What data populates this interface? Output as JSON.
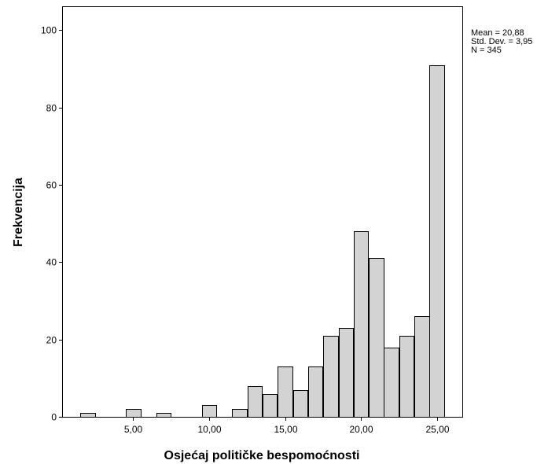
{
  "chart_data": {
    "type": "bar",
    "xlabel": "Osjećaj političke bespomoćnosti",
    "ylabel": "Frekvencija",
    "bar_color": "#d3d3d3",
    "edge_color": "#000000",
    "bin_width": 0.96,
    "bins": [
      {
        "center": 2.0,
        "count": 1
      },
      {
        "center": 5.0,
        "count": 2
      },
      {
        "center": 7.0,
        "count": 1
      },
      {
        "center": 10.0,
        "count": 3
      },
      {
        "center": 12.0,
        "count": 2
      },
      {
        "center": 13.0,
        "count": 8
      },
      {
        "center": 14.0,
        "count": 6
      },
      {
        "center": 15.0,
        "count": 13
      },
      {
        "center": 16.0,
        "count": 7
      },
      {
        "center": 17.0,
        "count": 13
      },
      {
        "center": 18.0,
        "count": 21
      },
      {
        "center": 19.0,
        "count": 23
      },
      {
        "center": 20.0,
        "count": 48
      },
      {
        "center": 21.0,
        "count": 41
      },
      {
        "center": 22.0,
        "count": 18
      },
      {
        "center": 23.0,
        "count": 21
      },
      {
        "center": 24.0,
        "count": 26
      },
      {
        "center": 25.0,
        "count": 91
      }
    ],
    "x_ticks": [
      {
        "value": 5,
        "label": "5,00"
      },
      {
        "value": 10,
        "label": "10,00"
      },
      {
        "value": 15,
        "label": "15,00"
      },
      {
        "value": 20,
        "label": "20,00"
      },
      {
        "value": 25,
        "label": "25,00"
      }
    ],
    "y_ticks": [
      {
        "value": 0,
        "label": "0"
      },
      {
        "value": 20,
        "label": "20"
      },
      {
        "value": 40,
        "label": "40"
      },
      {
        "value": 60,
        "label": "60"
      },
      {
        "value": 80,
        "label": "80"
      },
      {
        "value": 100,
        "label": "100"
      }
    ],
    "xlim": [
      0.38,
      26.67
    ],
    "ylim": [
      0,
      106
    ],
    "stats": {
      "mean": "Mean = 20,88",
      "std_dev": "Std. Dev. = 3,95",
      "n": "N = 345"
    }
  }
}
